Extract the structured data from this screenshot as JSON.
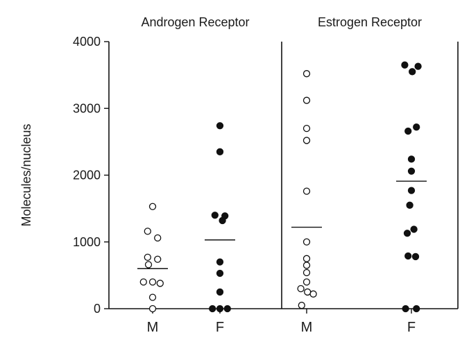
{
  "chart_data": {
    "type": "scatter",
    "ylabel": "Molecules/nucleus",
    "ylim": [
      0,
      4000
    ],
    "yticks": [
      0,
      1000,
      2000,
      3000,
      4000
    ],
    "grid": false,
    "colors": {
      "male_marker": "#ffffff",
      "female_marker": "#111111",
      "axis": "#111111"
    },
    "panels": [
      {
        "title": "Androgen Receptor",
        "categories": [
          "M",
          "F"
        ],
        "series": [
          {
            "category": "M",
            "marker": "open-circle",
            "mean": 600,
            "points": [
              {
                "y": 1530,
                "dx": 0
              },
              {
                "y": 1160,
                "dx": -0.3
              },
              {
                "y": 1060,
                "dx": 0.3
              },
              {
                "y": 770,
                "dx": -0.3
              },
              {
                "y": 740,
                "dx": 0.3
              },
              {
                "y": 660,
                "dx": -0.25
              },
              {
                "y": 400,
                "dx": -0.55
              },
              {
                "y": 400,
                "dx": 0
              },
              {
                "y": 380,
                "dx": 0.45
              },
              {
                "y": 170,
                "dx": 0
              },
              {
                "y": 0,
                "dx": 0
              }
            ]
          },
          {
            "category": "F",
            "marker": "filled-circle",
            "mean": 1030,
            "points": [
              {
                "y": 2740,
                "dx": 0
              },
              {
                "y": 2350,
                "dx": 0
              },
              {
                "y": 1400,
                "dx": -0.3
              },
              {
                "y": 1390,
                "dx": 0.3
              },
              {
                "y": 1320,
                "dx": 0.15
              },
              {
                "y": 700,
                "dx": 0
              },
              {
                "y": 530,
                "dx": 0
              },
              {
                "y": 250,
                "dx": 0
              },
              {
                "y": 0,
                "dx": -0.45
              },
              {
                "y": 0,
                "dx": 0
              },
              {
                "y": 0,
                "dx": 0.45
              }
            ]
          }
        ]
      },
      {
        "title": "Estrogen Receptor",
        "categories": [
          "M",
          "F"
        ],
        "series": [
          {
            "category": "M",
            "marker": "open-circle",
            "mean": 1220,
            "points": [
              {
                "y": 3520,
                "dx": 0
              },
              {
                "y": 3120,
                "dx": 0
              },
              {
                "y": 2700,
                "dx": 0
              },
              {
                "y": 2520,
                "dx": 0
              },
              {
                "y": 1760,
                "dx": 0
              },
              {
                "y": 1000,
                "dx": 0
              },
              {
                "y": 750,
                "dx": 0
              },
              {
                "y": 650,
                "dx": 0
              },
              {
                "y": 540,
                "dx": 0
              },
              {
                "y": 400,
                "dx": 0
              },
              {
                "y": 300,
                "dx": -0.35
              },
              {
                "y": 250,
                "dx": 0.05
              },
              {
                "y": 220,
                "dx": 0.4
              },
              {
                "y": 50,
                "dx": -0.3
              }
            ]
          },
          {
            "category": "F",
            "marker": "filled-circle",
            "mean": 1910,
            "points": [
              {
                "y": 3650,
                "dx": -0.4
              },
              {
                "y": 3630,
                "dx": 0.4
              },
              {
                "y": 3550,
                "dx": 0.05
              },
              {
                "y": 2720,
                "dx": 0.3
              },
              {
                "y": 2660,
                "dx": -0.2
              },
              {
                "y": 2240,
                "dx": 0
              },
              {
                "y": 2060,
                "dx": 0
              },
              {
                "y": 1770,
                "dx": 0
              },
              {
                "y": 1550,
                "dx": -0.1
              },
              {
                "y": 1190,
                "dx": 0.15
              },
              {
                "y": 1130,
                "dx": -0.25
              },
              {
                "y": 790,
                "dx": -0.2
              },
              {
                "y": 780,
                "dx": 0.25
              },
              {
                "y": 0,
                "dx": -0.35
              },
              {
                "y": 0,
                "dx": 0.3
              }
            ]
          }
        ]
      }
    ]
  }
}
